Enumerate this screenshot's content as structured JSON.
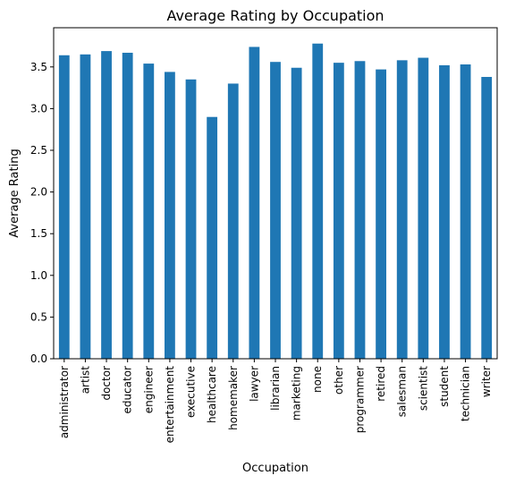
{
  "chart_data": {
    "type": "bar",
    "title": "Average Rating by Occupation",
    "xlabel": "Occupation",
    "ylabel": "Average Rating",
    "categories": [
      "administrator",
      "artist",
      "doctor",
      "educator",
      "engineer",
      "entertainment",
      "executive",
      "healthcare",
      "homemaker",
      "lawyer",
      "librarian",
      "marketing",
      "none",
      "other",
      "programmer",
      "retired",
      "salesman",
      "scientist",
      "student",
      "technician",
      "writer"
    ],
    "values": [
      3.64,
      3.65,
      3.69,
      3.67,
      3.54,
      3.44,
      3.35,
      2.9,
      3.3,
      3.74,
      3.56,
      3.49,
      3.78,
      3.55,
      3.57,
      3.47,
      3.58,
      3.61,
      3.52,
      3.53,
      3.38
    ],
    "ylim": [
      0,
      3.97
    ],
    "yticks": [
      "0.0",
      "0.5",
      "1.0",
      "1.5",
      "2.0",
      "2.5",
      "3.0",
      "3.5"
    ],
    "grid": false,
    "colors": {
      "bar": "#1f77b4",
      "axis": "#000000",
      "background": "#ffffff"
    }
  }
}
